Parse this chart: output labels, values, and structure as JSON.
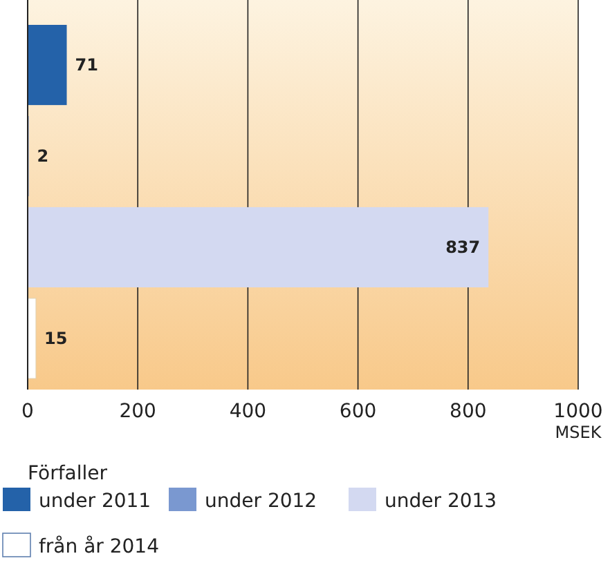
{
  "chart_data": {
    "type": "bar",
    "orientation": "horizontal",
    "categories": [
      null,
      null,
      null,
      null
    ],
    "series": [
      {
        "name": "under 2011",
        "color": "#2462a9",
        "values": [
          71,
          null,
          null,
          null
        ]
      },
      {
        "name": "under 2012",
        "color": "#7a98d0",
        "values": [
          null,
          2,
          null,
          null
        ]
      },
      {
        "name": "under 2013",
        "color": "#d3d9f1",
        "values": [
          null,
          null,
          837,
          null
        ]
      },
      {
        "name": "från år 2014",
        "color": "#ffffff",
        "values": [
          null,
          null,
          null,
          15
        ]
      }
    ],
    "xlim": [
      0,
      1000
    ],
    "xticks": [
      0,
      200,
      400,
      600,
      800,
      1000
    ],
    "xlabel": "MSEK",
    "legend_title": "Förfaller",
    "legend": "bottom",
    "grid": "x",
    "data_labels": true
  }
}
